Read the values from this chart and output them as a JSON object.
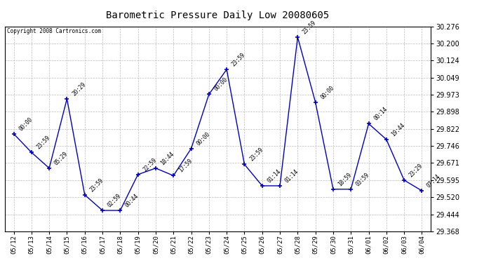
{
  "title": "Barometric Pressure Daily Low 20080605",
  "copyright": "Copyright 2008 Cartronics.com",
  "dates": [
    "05/12",
    "05/13",
    "05/14",
    "05/15",
    "05/16",
    "05/17",
    "05/18",
    "05/19",
    "05/20",
    "05/21",
    "05/22",
    "05/23",
    "05/24",
    "05/25",
    "05/26",
    "05/27",
    "05/28",
    "05/29",
    "05/30",
    "05/31",
    "06/01",
    "06/02",
    "06/03",
    "06/04"
  ],
  "values": [
    29.8,
    29.718,
    29.648,
    29.955,
    29.53,
    29.461,
    29.461,
    29.62,
    29.648,
    29.615,
    29.735,
    29.975,
    30.085,
    29.665,
    29.57,
    29.57,
    30.228,
    29.94,
    29.555,
    29.555,
    29.845,
    29.775,
    29.595,
    29.548
  ],
  "labels": [
    "00:00",
    "23:59",
    "05:29",
    "20:29",
    "23:59",
    "02:59",
    "00:44",
    "22:59",
    "18:44",
    "17:59",
    "00:00",
    "00:00",
    "23:59",
    "23:59",
    "01:14",
    "01:14",
    "23:59",
    "00:00",
    "18:59",
    "03:59",
    "00:14",
    "19:44",
    "23:29",
    "07:14"
  ],
  "line_color": "#0000bb",
  "marker_color": "#0000bb",
  "background_color": "#ffffff",
  "grid_color": "#bbbbbb",
  "ylim_min": 29.368,
  "ylim_max": 30.276,
  "yticks": [
    29.368,
    29.444,
    29.52,
    29.595,
    29.671,
    29.746,
    29.822,
    29.898,
    29.973,
    30.049,
    30.124,
    30.2,
    30.276
  ]
}
